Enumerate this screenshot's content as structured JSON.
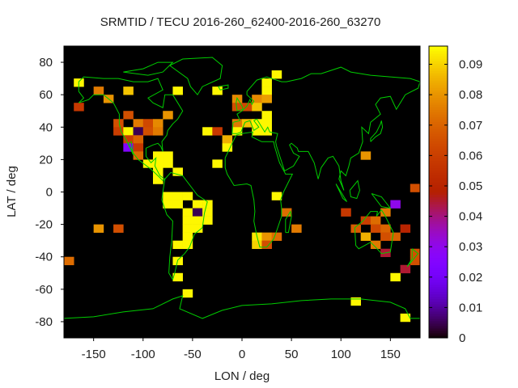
{
  "chart_data": {
    "type": "heatmap",
    "title": "SRMTID / TECU 2016-260_62400-2016-260_63270",
    "xlabel": "LON / deg",
    "ylabel": "LAT / deg",
    "xlim": [
      -180,
      180
    ],
    "ylim": [
      -90,
      90
    ],
    "xticks": [
      -150,
      -100,
      -50,
      0,
      50,
      100,
      150
    ],
    "xtick_labels": [
      "-150",
      "-100",
      "-50",
      "0",
      "50",
      "100",
      "150"
    ],
    "yticks": [
      80,
      60,
      40,
      20,
      0,
      -20,
      -40,
      -60,
      -80
    ],
    "ytick_labels": [
      "80",
      "60",
      "40",
      "20",
      "0",
      "-20",
      "-40",
      "-60",
      "-80"
    ],
    "colorbar": {
      "range": [
        0,
        0.096
      ],
      "ticks": [
        0,
        0.01,
        0.02,
        0.03,
        0.04,
        0.05,
        0.06,
        0.07,
        0.08,
        0.09
      ],
      "tick_labels": [
        "0",
        "0.01",
        "0.02",
        "0.03",
        "0.04",
        "0.05",
        "0.06",
        "0.07",
        "0.08",
        "0.09"
      ],
      "palette": "black-blue-purple-red-orange-yellow"
    },
    "background_color": "#000000",
    "coastline_color": "#00cc00",
    "cell_size_deg": {
      "lon": 10,
      "lat": 5
    },
    "cells_columns": [
      "lon_center",
      "lat_center",
      "value"
    ],
    "cells": [
      [
        -165,
        67.5,
        0.095
      ],
      [
        -145,
        62.5,
        0.075
      ],
      [
        -135,
        57.5,
        0.08
      ],
      [
        -165,
        52.5,
        0.058
      ],
      [
        -115,
        62.5,
        0.088
      ],
      [
        -65,
        62.5,
        0.095
      ],
      [
        -25,
        62.5,
        0.095
      ],
      [
        -115,
        47.5,
        0.065
      ],
      [
        -75,
        47.5,
        0.08
      ],
      [
        -125,
        42.5,
        0.065
      ],
      [
        -105,
        42.5,
        0.075
      ],
      [
        -95,
        42.5,
        0.063
      ],
      [
        -85,
        42.5,
        0.078
      ],
      [
        -125,
        37.5,
        0.06
      ],
      [
        -115,
        37.5,
        0.095
      ],
      [
        -105,
        37.5,
        0.005
      ],
      [
        -95,
        37.5,
        0.065
      ],
      [
        -85,
        37.5,
        0.075
      ],
      [
        -115,
        32.5,
        0.06
      ],
      [
        -105,
        32.5,
        0.07
      ],
      [
        -115,
        27.5,
        0.025
      ],
      [
        -105,
        27.5,
        0.058
      ],
      [
        -105,
        22.5,
        0.072
      ],
      [
        -85,
        22.5,
        0.095
      ],
      [
        -75,
        22.5,
        0.095
      ],
      [
        -95,
        17.5,
        0.095
      ],
      [
        -85,
        17.5,
        0.095
      ],
      [
        -75,
        17.5,
        0.095
      ],
      [
        -85,
        12.5,
        0.095
      ],
      [
        -65,
        12.5,
        0.095
      ],
      [
        -85,
        7.5,
        0.095
      ],
      [
        -75,
        -2.5,
        0.095
      ],
      [
        -65,
        -2.5,
        0.095
      ],
      [
        -55,
        -2.5,
        0.095
      ],
      [
        -75,
        -7.5,
        0.095
      ],
      [
        -65,
        -7.5,
        0.095
      ],
      [
        -45,
        -7.5,
        0.095
      ],
      [
        -35,
        -7.5,
        0.095
      ],
      [
        -55,
        -12.5,
        0.095
      ],
      [
        -45,
        -12.5,
        0.005
      ],
      [
        -35,
        -12.5,
        0.095
      ],
      [
        -55,
        -17.5,
        0.095
      ],
      [
        -45,
        -17.5,
        0.095
      ],
      [
        -35,
        -17.5,
        0.095
      ],
      [
        -55,
        -22.5,
        0.095
      ],
      [
        -45,
        -22.5,
        0.095
      ],
      [
        -55,
        -27.5,
        0.095
      ],
      [
        -65,
        -32.5,
        0.095
      ],
      [
        -55,
        -32.5,
        0.095
      ],
      [
        -65,
        -42.5,
        0.095
      ],
      [
        -65,
        -52.5,
        0.095
      ],
      [
        -55,
        -62.5,
        0.095
      ],
      [
        -145,
        -22.5,
        0.08
      ],
      [
        -125,
        -22.5,
        0.065
      ],
      [
        -175,
        -42.5,
        0.072
      ],
      [
        35,
        72.5,
        0.095
      ],
      [
        25,
        67.5,
        0.095
      ],
      [
        25,
        62.5,
        0.095
      ],
      [
        -5,
        57.5,
        0.078
      ],
      [
        15,
        57.5,
        0.078
      ],
      [
        25,
        57.5,
        0.082
      ],
      [
        -5,
        52.5,
        0.065
      ],
      [
        5,
        52.5,
        0.063
      ],
      [
        15,
        52.5,
        0.088
      ],
      [
        25,
        47.5,
        0.095
      ],
      [
        -5,
        42.5,
        0.075
      ],
      [
        5,
        42.5,
        0.088
      ],
      [
        15,
        42.5,
        0.095
      ],
      [
        25,
        42.5,
        0.095
      ],
      [
        -35,
        37.5,
        0.095
      ],
      [
        -25,
        37.5,
        0.058
      ],
      [
        -5,
        37.5,
        0.095
      ],
      [
        15,
        37.5,
        0.095
      ],
      [
        25,
        37.5,
        0.095
      ],
      [
        -15,
        32.5,
        0.085
      ],
      [
        -15,
        27.5,
        0.095
      ],
      [
        -25,
        17.5,
        0.095
      ],
      [
        35,
        -2.5,
        0.095
      ],
      [
        45,
        -12.5,
        0.072
      ],
      [
        55,
        -22.5,
        0.075
      ],
      [
        15,
        -27.5,
        0.093
      ],
      [
        25,
        -27.5,
        0.08
      ],
      [
        35,
        -27.5,
        0.072
      ],
      [
        15,
        -32.5,
        0.09
      ],
      [
        25,
        -32.5,
        0.065
      ],
      [
        125,
        22.5,
        0.08
      ],
      [
        175,
        2.5,
        0.065
      ],
      [
        155,
        -7.5,
        0.03
      ],
      [
        105,
        -12.5,
        0.058
      ],
      [
        145,
        -12.5,
        0.075
      ],
      [
        125,
        -17.5,
        0.06
      ],
      [
        135,
        -17.5,
        0.072
      ],
      [
        115,
        -22.5,
        0.068
      ],
      [
        135,
        -22.5,
        0.063
      ],
      [
        145,
        -22.5,
        0.07
      ],
      [
        165,
        -22.5,
        0.05
      ],
      [
        125,
        -27.5,
        0.085
      ],
      [
        145,
        -27.5,
        0.065
      ],
      [
        155,
        -27.5,
        0.07
      ],
      [
        135,
        -32.5,
        0.075
      ],
      [
        145,
        -37.5,
        0.045
      ],
      [
        175,
        -37.5,
        0.065
      ],
      [
        175,
        -42.5,
        0.065
      ],
      [
        165,
        -47.5,
        0.045
      ],
      [
        155,
        -52.5,
        0.095
      ],
      [
        115,
        -67.5,
        0.095
      ],
      [
        165,
        -77.5,
        0.095
      ]
    ]
  }
}
